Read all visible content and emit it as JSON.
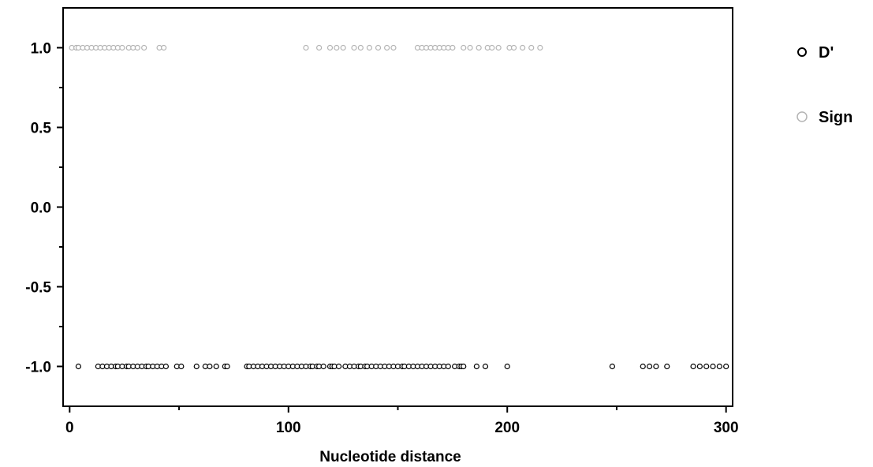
{
  "chart_data": {
    "type": "scatter",
    "title": "",
    "xlabel": "Nucleotide distance",
    "ylabel": "",
    "xlim": [
      -3,
      303
    ],
    "ylim": [
      -1.25,
      1.25
    ],
    "x_ticks": [
      0,
      100,
      200,
      300
    ],
    "x_tick_labels": [
      "0",
      "100",
      "200",
      "300"
    ],
    "y_ticks": [
      1.0,
      0.5,
      0.0,
      -0.5,
      -1.0
    ],
    "y_tick_labels": [
      "1.0",
      "0.5",
      "0.0",
      "-0.5",
      "-1.0"
    ],
    "grid": false,
    "legend_position": "right",
    "colors": {
      "dprime": "#000000",
      "sign": "#b4b4b4"
    },
    "series": [
      {
        "name": "D'",
        "y_value": -1.0,
        "x": [
          4,
          13,
          15,
          17,
          19,
          21,
          22,
          24,
          26,
          27,
          29,
          31,
          33,
          35,
          36,
          38,
          40,
          42,
          44,
          49,
          51,
          58,
          62,
          64,
          67,
          71,
          72,
          81,
          82,
          84,
          86,
          88,
          90,
          92,
          94,
          96,
          98,
          100,
          102,
          104,
          106,
          108,
          110,
          111,
          113,
          114,
          116,
          119,
          120,
          121,
          123,
          126,
          128,
          130,
          132,
          133,
          135,
          136,
          138,
          140,
          142,
          144,
          146,
          148,
          150,
          152,
          153,
          155,
          157,
          159,
          161,
          163,
          165,
          167,
          169,
          171,
          173,
          176,
          178,
          179,
          180,
          186,
          190,
          200,
          248,
          262,
          265,
          268,
          273,
          285,
          288,
          291,
          294,
          297,
          300
        ]
      },
      {
        "name": "Sign",
        "y_value": 1.0,
        "x": [
          1,
          3,
          4,
          6,
          8,
          10,
          12,
          14,
          16,
          18,
          20,
          22,
          24,
          27,
          29,
          31,
          34,
          41,
          43,
          108,
          114,
          119,
          122,
          125,
          130,
          133,
          137,
          141,
          145,
          148,
          159,
          161,
          163,
          165,
          167,
          169,
          171,
          173,
          175,
          180,
          183,
          187,
          191,
          193,
          196,
          201,
          203,
          207,
          211,
          215
        ]
      }
    ]
  }
}
